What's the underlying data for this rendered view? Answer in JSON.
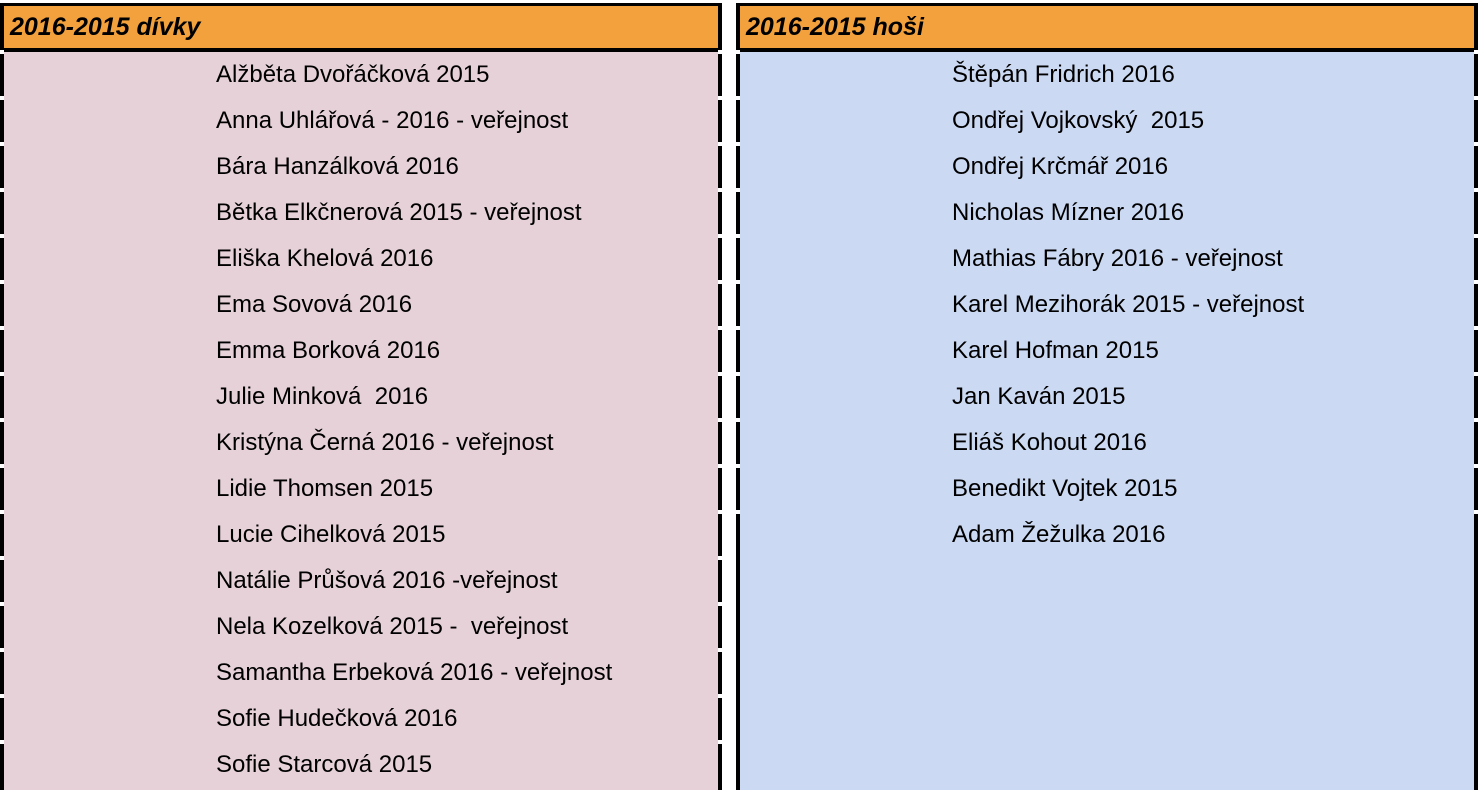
{
  "left": {
    "title": "2016-2015 dívky",
    "rows": [
      "Alžběta Dvořáčková 2015",
      "Anna Uhlářová - 2016 - veřejnost",
      "Bára Hanzálková 2016",
      "Bětka Elkčnerová 2015 - veřejnost",
      "Eliška Khelová 2016",
      "Ema Sovová 2016",
      "Emma Borková 2016",
      "Julie Minková  2016",
      "Kristýna Černá 2016 - veřejnost",
      "Lidie Thomsen 2015",
      "Lucie Cihelková 2015",
      "Natálie Průšová 2016 -veřejnost",
      "Nela Kozelková 2015 -  veřejnost",
      "Samantha Erbeková 2016 - veřejnost",
      "Sofie Hudečková 2016",
      "Sofie Starcová 2015"
    ]
  },
  "right": {
    "title": "2016-2015 hoši",
    "rows": [
      "Štěpán Fridrich 2016",
      "Ondřej Vojkovský  2015",
      "Ondřej Krčmář 2016",
      "Nicholas Mízner 2016",
      "Mathias Fábry 2016 - veřejnost",
      "Karel Mezihorák 2015 - veřejnost",
      "Karel Hofman 2015",
      "Jan Kaván 2015",
      "Eliáš Kohout 2016",
      "Benedikt Vojtek 2015",
      "Adam Žežulka 2016"
    ]
  }
}
